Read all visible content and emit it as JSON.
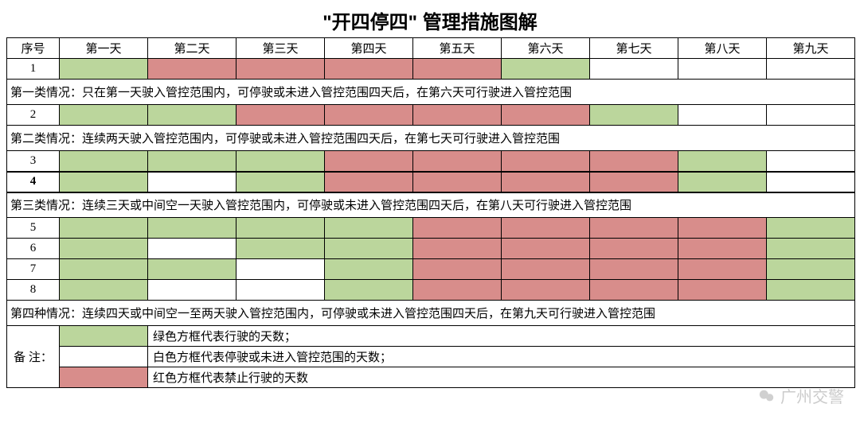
{
  "title": "\"开四停四\" 管理措施图解",
  "columns": [
    "序号",
    "第一天",
    "第二天",
    "第三天",
    "第四天",
    "第五天",
    "第六天",
    "第七天",
    "第八天",
    "第九天"
  ],
  "colors": {
    "green": "#bbd69c",
    "red": "#d88d8b",
    "white": "#ffffff"
  },
  "rows": [
    {
      "type": "data",
      "idx": "1",
      "cells": [
        "green",
        "red",
        "red",
        "red",
        "red",
        "green",
        "white",
        "white",
        "white"
      ]
    },
    {
      "type": "desc",
      "text": "第一类情况：只在第一天驶入管控范围内，可停驶或未进入管控范围四天后，在第六天可行驶进入管控范围"
    },
    {
      "type": "data",
      "idx": "2",
      "cells": [
        "green",
        "green",
        "red",
        "red",
        "red",
        "red",
        "green",
        "white",
        "white"
      ]
    },
    {
      "type": "desc",
      "text": "第二类情况：连续两天驶入管控范围内，可停驶或未进入管控范围四天后，在第七天可行驶进入管控范围"
    },
    {
      "type": "data",
      "idx": "3",
      "cells": [
        "green",
        "green",
        "green",
        "red",
        "red",
        "red",
        "red",
        "green",
        "white"
      ]
    },
    {
      "type": "data",
      "idx": "4",
      "bold": true,
      "cells": [
        "green",
        "white",
        "green",
        "red",
        "red",
        "red",
        "red",
        "green",
        "white"
      ]
    },
    {
      "type": "desc",
      "text": "第三类情况：连续三天或中间空一天驶入管控范围内，可停驶或未进入管控范围四天后，在第八天可行驶进入管控范围"
    },
    {
      "type": "data",
      "idx": "5",
      "cells": [
        "green",
        "green",
        "green",
        "green",
        "red",
        "red",
        "red",
        "red",
        "green"
      ]
    },
    {
      "type": "data",
      "idx": "6",
      "cells": [
        "green",
        "white",
        "green",
        "green",
        "red",
        "red",
        "red",
        "red",
        "green"
      ]
    },
    {
      "type": "data",
      "idx": "7",
      "cells": [
        "green",
        "green",
        "white",
        "green",
        "red",
        "red",
        "red",
        "red",
        "green"
      ]
    },
    {
      "type": "data",
      "idx": "8",
      "cells": [
        "green",
        "white",
        "white",
        "green",
        "red",
        "red",
        "red",
        "red",
        "green"
      ]
    },
    {
      "type": "desc",
      "text": "第四种情况：连续四天或中间空一至两天驶入管控范围内，可停驶或未进入管控范围四天后，在第九天可行驶进入管控范围"
    }
  ],
  "legend": {
    "label": "备  注：",
    "items": [
      {
        "swatch": "green",
        "text": "绿色方框代表行驶的天数；"
      },
      {
        "swatch": "white",
        "text": "白色方框代表停驶或未进入管控范围的天数；"
      },
      {
        "swatch": "red",
        "text": "红色方框代表禁止行驶的天数"
      }
    ]
  },
  "watermark": "广州交警"
}
